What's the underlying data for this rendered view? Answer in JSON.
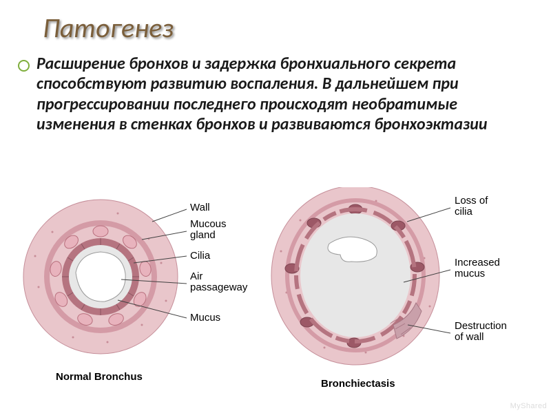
{
  "colors": {
    "title": "#7b5f3b",
    "body_text": "#1a1a1a",
    "bullet_border": "#7fae3c",
    "wall_outer": "#e9c6cb",
    "wall_mid": "#d49ba6",
    "wall_inner_ring": "#b57480",
    "mucus_gland": "#e8b3bd",
    "mucus_gland_stroke": "#b86f7d",
    "cilia": "#7a5560",
    "mucus": "#e7e7e7",
    "lumen": "#ffffff",
    "outline": "#8a6a72",
    "leader": "#404040",
    "speckle": "#c78d98",
    "destruction": "#c9a0aa"
  },
  "title": "Патогенез",
  "body": "Расширение бронхов и задержка бронхиального секрета способствуют развитию воспаления. В дальнейшем при прогрессировании последнего происходят необратимые изменения в стенках бронхов и развиваются бронхоэктазии",
  "figure": {
    "normal": {
      "caption": "Normal Bronchus",
      "labels": {
        "wall": "Wall",
        "mucous_gland": "Mucous\ngland",
        "cilia": "Cilia",
        "air": "Air\npassageway",
        "mucus": "Mucus"
      }
    },
    "ectasis": {
      "caption": "Bronchiectasis",
      "labels": {
        "loss_cilia": "Loss of\ncilia",
        "increased_mucus": "Increased\nmucus",
        "destruction": "Destruction\nof wall"
      }
    }
  },
  "watermark": "MyShared"
}
